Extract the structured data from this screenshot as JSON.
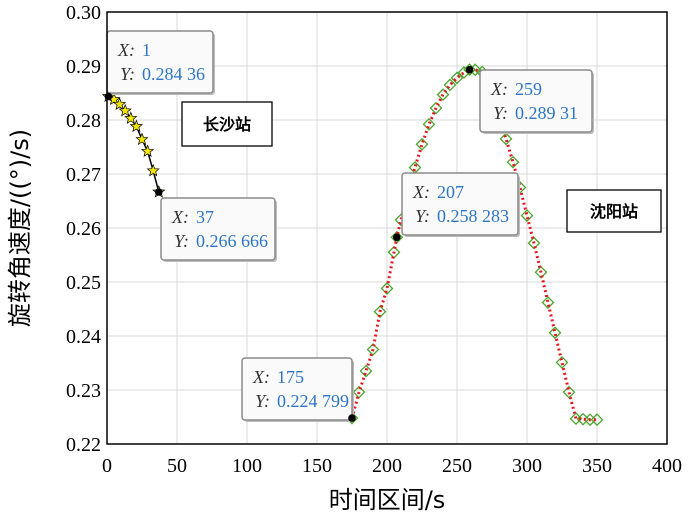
{
  "chart_data": {
    "type": "line",
    "xlabel": "时间区间/s",
    "ylabel": "旋转角速度/((°)/s)",
    "xlim": [
      0,
      400
    ],
    "ylim": [
      0.22,
      0.3
    ],
    "xticks": [
      0,
      50,
      100,
      150,
      200,
      250,
      300,
      350,
      400
    ],
    "yticks": [
      0.22,
      0.23,
      0.24,
      0.25,
      0.26,
      0.27,
      0.28,
      0.29,
      0.3
    ],
    "x_tick_labels": [
      "0",
      "50",
      "100",
      "150",
      "200",
      "250",
      "300",
      "350",
      "400"
    ],
    "y_tick_labels": [
      "0.22",
      "0.23",
      "0.24",
      "0.25",
      "0.26",
      "0.27",
      "0.28",
      "0.29",
      "0.30"
    ],
    "grid": true,
    "series": [
      {
        "marker": "star",
        "color": "#f2e600",
        "line_color": "#000000",
        "x": [
          1,
          5,
          9,
          13,
          17,
          21,
          25,
          29,
          33,
          37
        ],
        "y": [
          0.28436,
          0.2838,
          0.2829,
          0.2817,
          0.2803,
          0.2788,
          0.2764,
          0.2742,
          0.2706,
          0.266666
        ]
      },
      {
        "marker": "diamond",
        "color": "#4aa62e",
        "line_color": "#e8161e",
        "x": [
          175,
          180,
          185,
          190,
          195,
          200,
          205,
          207,
          210,
          215,
          220,
          225,
          230,
          235,
          240,
          245,
          250,
          255,
          259,
          263,
          268,
          272,
          276,
          280,
          285,
          290,
          295,
          300,
          305,
          310,
          315,
          320,
          325,
          330,
          335,
          340,
          345,
          350
        ],
        "y": [
          0.224799,
          0.2296,
          0.2335,
          0.2375,
          0.2445,
          0.2488,
          0.2555,
          0.258283,
          0.2615,
          0.2665,
          0.2712,
          0.2755,
          0.2792,
          0.2822,
          0.2847,
          0.2865,
          0.2878,
          0.2888,
          0.28931,
          0.2893,
          0.2889,
          0.2878,
          0.2848,
          0.2808,
          0.2765,
          0.2722,
          0.2675,
          0.2623,
          0.2572,
          0.2518,
          0.2462,
          0.2406,
          0.2351,
          0.2296,
          0.2247,
          0.2246,
          0.2245,
          0.2245
        ]
      }
    ],
    "datatips": [
      {
        "x": 1,
        "y": 0.28436,
        "x_text": "1",
        "y_text": "0.284 36"
      },
      {
        "x": 37,
        "y": 0.266666,
        "x_text": "37",
        "y_text": "0.266 666"
      },
      {
        "x": 175,
        "y": 0.224799,
        "x_text": "175",
        "y_text": "0.224 799"
      },
      {
        "x": 207,
        "y": 0.258283,
        "x_text": "207",
        "y_text": "0.258 283"
      },
      {
        "x": 259,
        "y": 0.28931,
        "x_text": "259",
        "y_text": "0.289 31"
      }
    ],
    "annotations": [
      {
        "text": "长沙站"
      },
      {
        "text": "沈阳站"
      }
    ],
    "datatip_labels": {
      "x_key": "X",
      "y_key": "Y"
    }
  }
}
